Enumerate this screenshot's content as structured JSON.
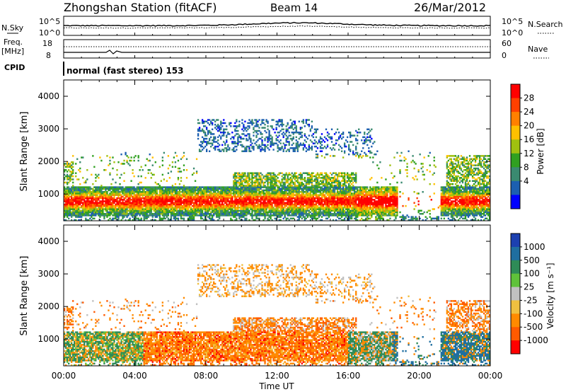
{
  "header": {
    "title": "Zhongshan Station (fitACF)",
    "beam": "Beam 14",
    "date": "26/Mar/2012"
  },
  "top_panels": {
    "nsky_label": "N.Sky",
    "nsearch_label": "N.Search",
    "nsky_ticks": [
      "10^5",
      "10^0"
    ],
    "nsearch_ticks": [
      "10^5",
      "10^0"
    ],
    "freq_label": "Freq.",
    "freq_unit": "[MHz]",
    "freq_ticks": [
      "18",
      "8"
    ],
    "nave_label": "Nave",
    "nave_ticks": [
      "60",
      "0"
    ],
    "cpid_label": "CPID",
    "cpid_value": "normal (fast stereo) 153"
  },
  "chart_data": [
    {
      "type": "heatmap",
      "name": "power",
      "ylabel": "Slant Range [km]",
      "xlabel": "Time UT",
      "xlim": [
        0,
        24
      ],
      "ylim": [
        180,
        4500
      ],
      "x_ticks": [
        "00:00",
        "04:00",
        "08:00",
        "12:00",
        "16:00",
        "20:00",
        "00:00"
      ],
      "y_ticks": [
        "1000",
        "2000",
        "3000",
        "4000"
      ],
      "colorbar": {
        "label": "Power [dB]",
        "tick_labels": [
          "28",
          "24",
          "20",
          "16",
          "12",
          "8",
          "4"
        ],
        "colors": [
          "#ff0000",
          "#ff4000",
          "#ff8000",
          "#ffc000",
          "#a0c010",
          "#30a020",
          "#3a8a70",
          "#1c5fb0",
          "#0000ff"
        ]
      }
    },
    {
      "type": "heatmap",
      "name": "velocity",
      "ylabel": "Slant Range [km]",
      "xlabel": "Time UT",
      "xlim": [
        0,
        24
      ],
      "ylim": [
        180,
        4500
      ],
      "x_ticks": [
        "00:00",
        "04:00",
        "08:00",
        "12:00",
        "16:00",
        "20:00",
        "00:00"
      ],
      "y_ticks": [
        "1000",
        "2000",
        "3000",
        "4000"
      ],
      "colorbar": {
        "label": "Velocity [m s⁻¹]",
        "tick_labels": [
          "1000",
          "500",
          "100",
          "25",
          "-25",
          "-100",
          "-500",
          "-1000"
        ],
        "colors": [
          "#1c40b0",
          "#1f6ea0",
          "#2e8b57",
          "#5fc23a",
          "#c0c0c0",
          "#f0c040",
          "#ff8a00",
          "#ff5a00",
          "#ff0000"
        ]
      }
    }
  ],
  "x_axis": {
    "ticks": [
      "00:00",
      "04:00",
      "08:00",
      "12:00",
      "16:00",
      "20:00",
      "00:00"
    ],
    "label": "Time UT"
  }
}
